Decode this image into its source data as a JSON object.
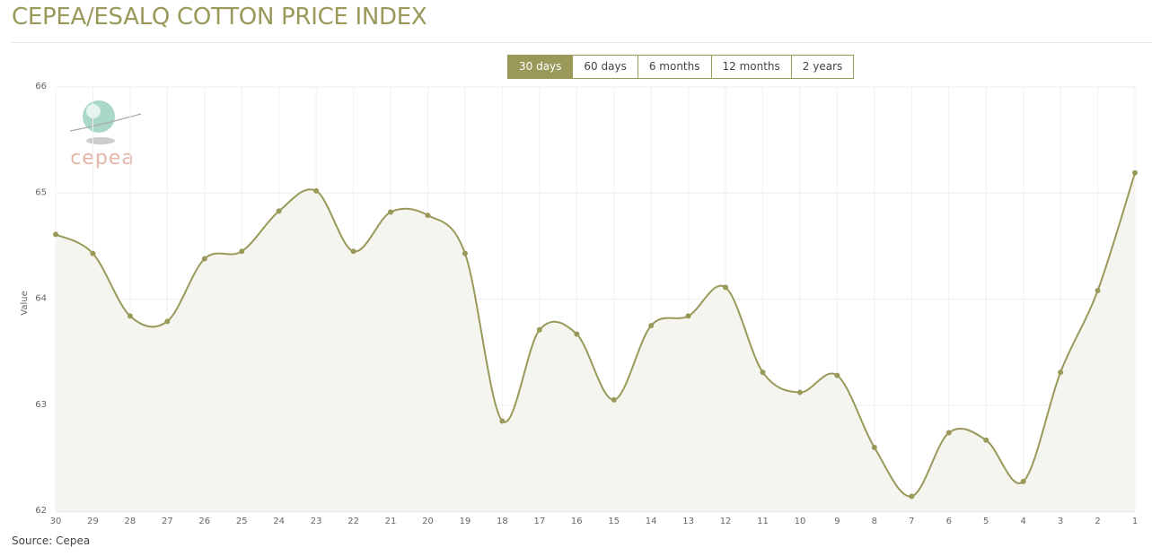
{
  "chart_data": {
    "type": "line",
    "title": "CEPEA/ESALQ COTTON PRICE INDEX",
    "buttons": [
      {
        "label": "30 days",
        "active": true
      },
      {
        "label": "60 days",
        "active": false
      },
      {
        "label": "6 months",
        "active": false
      },
      {
        "label": "12 months",
        "active": false
      },
      {
        "label": "2 years",
        "active": false
      }
    ],
    "y_label": "Value",
    "logo_text": "cepea",
    "source": "Source: Cepea",
    "categories": [
      "30",
      "29",
      "28",
      "27",
      "26",
      "25",
      "24",
      "23",
      "22",
      "21",
      "20",
      "19",
      "18",
      "17",
      "16",
      "15",
      "14",
      "13",
      "12",
      "11",
      "10",
      "9",
      "8",
      "7",
      "6",
      "5",
      "4",
      "3",
      "2",
      "1"
    ],
    "series": [
      {
        "name": "Value",
        "color": "#99995a",
        "values": [
          64.61,
          64.43,
          63.84,
          63.79,
          64.38,
          64.45,
          64.83,
          65.02,
          64.45,
          64.82,
          64.79,
          64.43,
          62.85,
          63.71,
          63.67,
          63.05,
          63.75,
          63.84,
          64.11,
          63.31,
          63.12,
          63.28,
          62.6,
          62.14,
          62.74,
          62.67,
          62.28,
          63.31,
          64.08,
          65.19
        ]
      }
    ],
    "ylim": [
      62,
      66
    ],
    "yticks": [
      62,
      63,
      64,
      65,
      66
    ],
    "grid": true
  }
}
